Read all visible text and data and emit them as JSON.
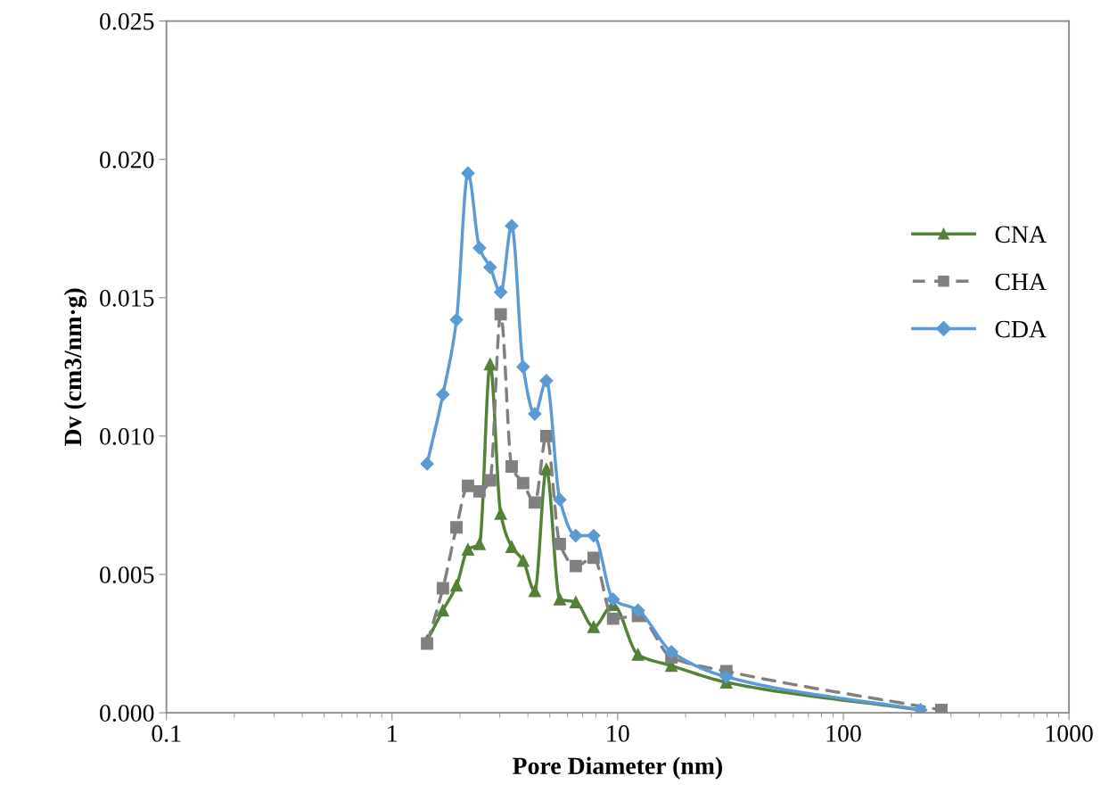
{
  "chart_data": {
    "type": "line",
    "xlabel": "Pore Diameter (nm)",
    "ylabel": "Dv (cm3/nm·g)",
    "log": "x",
    "xlim": [
      0.1,
      1000
    ],
    "xticks": [
      0.1,
      1,
      10,
      100,
      1000
    ],
    "ylim": [
      0,
      0.025
    ],
    "yticks": [
      {
        "value": 0,
        "label": "0.000"
      },
      {
        "value": 0.005,
        "label": "0.005"
      },
      {
        "value": 0.01,
        "label": "0.010"
      },
      {
        "value": 0.015,
        "label": "0.015"
      },
      {
        "value": 0.02,
        "label": "0.020"
      },
      {
        "value": 0.025,
        "label": "0.025"
      }
    ],
    "grid": false,
    "legend": "right",
    "series": [
      {
        "name": "CNA",
        "color": "#538135",
        "marker": "triangle",
        "line_style": "solid",
        "x": [
          1.43,
          1.68,
          1.93,
          2.17,
          2.44,
          2.72,
          3.03,
          3.39,
          3.81,
          4.29,
          4.83,
          5.54,
          6.52,
          7.82,
          9.54,
          12.3,
          17.3,
          30.3,
          220
        ],
        "values": [
          0.0026,
          0.0037,
          0.0046,
          0.0059,
          0.0061,
          0.0126,
          0.0072,
          0.006,
          0.0055,
          0.0044,
          0.0088,
          0.0041,
          0.004,
          0.0031,
          0.0039,
          0.0021,
          0.0017,
          0.0011,
          0.0001
        ]
      },
      {
        "name": "CHA",
        "color": "#808080",
        "marker": "square",
        "line_style": "dashed",
        "x": [
          1.43,
          1.68,
          1.93,
          2.17,
          2.44,
          2.72,
          3.03,
          3.39,
          3.81,
          4.29,
          4.83,
          5.54,
          6.52,
          7.82,
          9.54,
          12.3,
          17.3,
          30.3,
          272
        ],
        "values": [
          0.0025,
          0.0045,
          0.0067,
          0.0082,
          0.008,
          0.0084,
          0.0144,
          0.0089,
          0.0083,
          0.0076,
          0.01,
          0.0061,
          0.0053,
          0.0056,
          0.0034,
          0.0035,
          0.002,
          0.0015,
          0.0001
        ]
      },
      {
        "name": "CDA",
        "color": "#5b9bd5",
        "marker": "diamond",
        "line_style": "solid",
        "x": [
          1.43,
          1.68,
          1.93,
          2.17,
          2.44,
          2.72,
          3.03,
          3.39,
          3.81,
          4.29,
          4.83,
          5.54,
          6.52,
          7.82,
          9.54,
          12.3,
          17.3,
          30.3,
          220
        ],
        "values": [
          0.009,
          0.0115,
          0.0142,
          0.0195,
          0.0168,
          0.0161,
          0.0152,
          0.0176,
          0.0125,
          0.0108,
          0.012,
          0.0077,
          0.0064,
          0.0064,
          0.0041,
          0.0037,
          0.0022,
          0.0013,
          0.0001
        ]
      }
    ]
  }
}
